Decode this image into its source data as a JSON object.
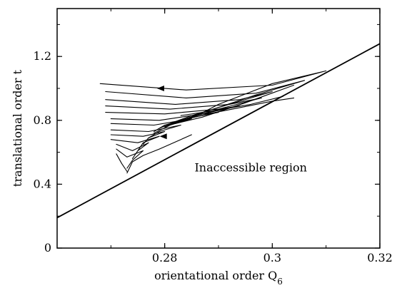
{
  "chart_data": {
    "type": "line",
    "title": "",
    "xlabel": "orientational order Q",
    "xlabel_subscript": "6",
    "ylabel": "translational order t",
    "xlim": [
      0.26,
      0.32
    ],
    "ylim": [
      0,
      1.5
    ],
    "x_ticks": [
      0.28,
      0.3,
      0.32
    ],
    "x_tick_labels": [
      "0.28",
      "0.3",
      "0.32"
    ],
    "y_ticks": [
      0,
      0.4,
      0.8,
      1.2
    ],
    "y_tick_labels": [
      "0",
      "0.4",
      "0.8",
      "1.2"
    ],
    "grid": false,
    "annotations": [
      {
        "text": "Inaccessible region",
        "x": 0.296,
        "y": 0.48
      }
    ],
    "series": [
      {
        "role": "boundary",
        "points": [
          [
            0.26,
            0.19
          ],
          [
            0.32,
            1.28
          ]
        ]
      },
      {
        "role": "trajectory",
        "points": [
          [
            0.268,
            1.03
          ],
          [
            0.284,
            0.99
          ],
          [
            0.3,
            1.02
          ],
          [
            0.31,
            1.11
          ],
          [
            0.3,
            1.03
          ],
          [
            0.29,
            0.9
          ],
          [
            0.286,
            0.83
          ],
          [
            0.282,
            0.78
          ],
          [
            0.287,
            0.82
          ],
          [
            0.295,
            0.91
          ],
          [
            0.304,
            1.02
          ]
        ]
      },
      {
        "role": "trajectory",
        "points": [
          [
            0.269,
            0.98
          ],
          [
            0.284,
            0.94
          ],
          [
            0.297,
            0.97
          ],
          [
            0.306,
            1.05
          ],
          [
            0.297,
            0.96
          ],
          [
            0.289,
            0.87
          ],
          [
            0.283,
            0.8
          ],
          [
            0.281,
            0.77
          ]
        ]
      },
      {
        "role": "trajectory",
        "points": [
          [
            0.269,
            0.93
          ],
          [
            0.282,
            0.9
          ],
          [
            0.294,
            0.93
          ],
          [
            0.3,
            0.98
          ],
          [
            0.292,
            0.9
          ],
          [
            0.285,
            0.83
          ],
          [
            0.281,
            0.78
          ]
        ]
      },
      {
        "role": "trajectory",
        "points": [
          [
            0.269,
            0.89
          ],
          [
            0.281,
            0.87
          ],
          [
            0.292,
            0.9
          ],
          [
            0.298,
            0.94
          ],
          [
            0.29,
            0.87
          ],
          [
            0.284,
            0.81
          ],
          [
            0.28,
            0.76
          ]
        ]
      },
      {
        "role": "trajectory",
        "points": [
          [
            0.269,
            0.85
          ],
          [
            0.28,
            0.84
          ],
          [
            0.29,
            0.87
          ],
          [
            0.294,
            0.89
          ],
          [
            0.287,
            0.84
          ],
          [
            0.282,
            0.79
          ],
          [
            0.279,
            0.75
          ]
        ]
      },
      {
        "role": "trajectory",
        "points": [
          [
            0.27,
            0.81
          ],
          [
            0.279,
            0.8
          ],
          [
            0.287,
            0.84
          ],
          [
            0.29,
            0.85
          ],
          [
            0.284,
            0.81
          ],
          [
            0.28,
            0.77
          ],
          [
            0.278,
            0.73
          ]
        ]
      },
      {
        "role": "trajectory",
        "points": [
          [
            0.27,
            0.78
          ],
          [
            0.278,
            0.77
          ],
          [
            0.285,
            0.81
          ],
          [
            0.281,
            0.77
          ],
          [
            0.278,
            0.72
          ]
        ]
      },
      {
        "role": "trajectory",
        "points": [
          [
            0.27,
            0.74
          ],
          [
            0.277,
            0.73
          ],
          [
            0.283,
            0.77
          ],
          [
            0.279,
            0.73
          ],
          [
            0.277,
            0.69
          ]
        ]
      },
      {
        "role": "trajectory",
        "points": [
          [
            0.27,
            0.71
          ],
          [
            0.276,
            0.7
          ],
          [
            0.28,
            0.73
          ],
          [
            0.277,
            0.69
          ],
          [
            0.276,
            0.65
          ]
        ]
      },
      {
        "role": "trajectory",
        "points": [
          [
            0.27,
            0.68
          ],
          [
            0.275,
            0.66
          ],
          [
            0.279,
            0.7
          ],
          [
            0.276,
            0.66
          ],
          [
            0.275,
            0.61
          ]
        ]
      },
      {
        "role": "trajectory",
        "points": [
          [
            0.271,
            0.65
          ],
          [
            0.274,
            0.61
          ],
          [
            0.277,
            0.66
          ],
          [
            0.275,
            0.61
          ],
          [
            0.274,
            0.56
          ]
        ]
      },
      {
        "role": "trajectory",
        "points": [
          [
            0.271,
            0.62
          ],
          [
            0.273,
            0.57
          ],
          [
            0.276,
            0.61
          ],
          [
            0.274,
            0.55
          ],
          [
            0.273,
            0.5
          ]
        ]
      },
      {
        "role": "trajectory",
        "points": [
          [
            0.273,
            0.47
          ],
          [
            0.274,
            0.54
          ],
          [
            0.276,
            0.58
          ],
          [
            0.279,
            0.62
          ],
          [
            0.283,
            0.68
          ],
          [
            0.285,
            0.71
          ]
        ]
      },
      {
        "role": "trajectory",
        "points": [
          [
            0.271,
            0.59
          ],
          [
            0.272,
            0.53
          ],
          [
            0.273,
            0.48
          ]
        ]
      },
      {
        "role": "trajectory",
        "points": [
          [
            0.282,
            0.79
          ],
          [
            0.288,
            0.84
          ],
          [
            0.294,
            0.88
          ],
          [
            0.3,
            0.92
          ],
          [
            0.304,
            0.94
          ]
        ]
      },
      {
        "role": "trajectory",
        "points": [
          [
            0.283,
            0.83
          ],
          [
            0.289,
            0.86
          ],
          [
            0.296,
            0.9
          ],
          [
            0.302,
            0.95
          ]
        ]
      }
    ],
    "arrows": [
      {
        "x": 0.2795,
        "y": 1.0,
        "direction": "left"
      },
      {
        "x": 0.28,
        "y": 0.7,
        "direction": "left"
      }
    ]
  }
}
